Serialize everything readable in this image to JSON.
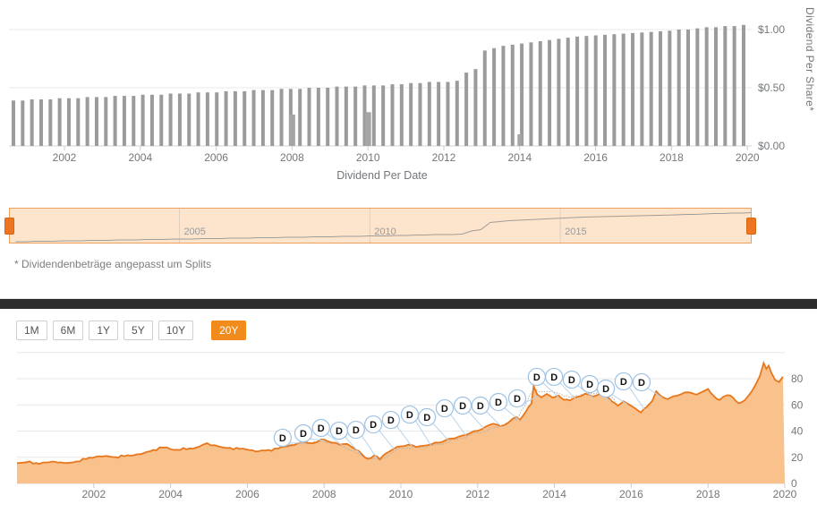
{
  "colors": {
    "accent_orange": "#f18b1b",
    "line_orange": "#e8771b",
    "area_fill": "#f9c18c",
    "bar_gray": "#9b9b9b",
    "navigator_fill": "#fce4cd",
    "navigator_border": "#efa05f",
    "handle_orange": "#ee7623",
    "badge_border": "#9fc2e4",
    "connector_blue": "#b9d4ec",
    "comparison_gray": "#b5aea6",
    "divider_dark": "#2d2d2d",
    "grid_gray": "#e8e8e8",
    "axis_line_gray": "#d6d6d6",
    "axis_text": "#74777a"
  },
  "footnote": "* Dividendenbeträge angepasst um Splits",
  "range_buttons": {
    "options": [
      "1M",
      "6M",
      "1Y",
      "5Y",
      "10Y",
      "20Y"
    ],
    "selected": "20Y"
  },
  "chart_data": [
    {
      "name": "dividend-per-share-bars",
      "type": "bar",
      "xlabel": "Dividend Per Date",
      "ylabel": "Dividend Per Share*",
      "frequency": "quarterly",
      "x_start_year": 2000.7,
      "x_step_years": 0.2443,
      "ylim": [
        0,
        1.15
      ],
      "values": [
        0.39,
        0.39,
        0.4,
        0.4,
        0.4,
        0.41,
        0.41,
        0.41,
        0.42,
        0.42,
        0.42,
        0.43,
        0.43,
        0.43,
        0.44,
        0.44,
        0.44,
        0.45,
        0.45,
        0.45,
        0.46,
        0.46,
        0.46,
        0.47,
        0.47,
        0.47,
        0.48,
        0.48,
        0.48,
        0.49,
        0.49,
        0.49,
        0.5,
        0.5,
        0.5,
        0.51,
        0.51,
        0.51,
        0.52,
        0.52,
        0.52,
        0.53,
        0.53,
        0.54,
        0.54,
        0.55,
        0.55,
        0.55,
        0.56,
        0.63,
        0.66,
        0.82,
        0.84,
        0.86,
        0.87,
        0.88,
        0.89,
        0.9,
        0.91,
        0.92,
        0.93,
        0.94,
        0.945,
        0.95,
        0.955,
        0.96,
        0.965,
        0.97,
        0.975,
        0.98,
        0.985,
        0.99,
        1.0,
        1.0,
        1.01,
        1.02,
        1.02,
        1.03,
        1.03,
        1.04
      ],
      "special_bars": [
        {
          "year": 2008.0,
          "value": 0.27,
          "w": 7
        },
        {
          "year": 2010.0,
          "value": 0.29,
          "w": 7
        },
        {
          "year": 2014.0,
          "value": 0.1,
          "w": 5
        }
      ],
      "x_ticks": [
        2002,
        2004,
        2006,
        2008,
        2010,
        2012,
        2014,
        2016,
        2018,
        2020
      ],
      "y_ticks": [
        {
          "value": 1.0,
          "label": "$1.00"
        },
        {
          "value": 0.5,
          "label": "$0.50"
        },
        {
          "value": 0.0,
          "label": "$0.00"
        }
      ]
    },
    {
      "name": "range-navigator",
      "type": "area",
      "series_ref": "dividend-per-share-bars",
      "x_ticks": [
        2005,
        2010,
        2015
      ],
      "selected_range": "full"
    },
    {
      "name": "price-chart",
      "type": "area",
      "ylim": [
        0,
        100
      ],
      "x_ticks": [
        2002,
        2004,
        2006,
        2008,
        2010,
        2012,
        2014,
        2016,
        2018,
        2020
      ],
      "y_ticks": [
        0,
        20,
        40,
        60,
        80
      ],
      "y_grid": [
        0,
        20,
        40,
        60,
        80,
        100
      ],
      "points": [
        [
          2000.0,
          15.5
        ],
        [
          2000.25,
          16.2
        ],
        [
          2000.5,
          15.6
        ],
        [
          2000.75,
          16.0
        ],
        [
          2001.0,
          16.4
        ],
        [
          2001.3,
          15.6
        ],
        [
          2001.55,
          16.8
        ],
        [
          2001.8,
          18.6
        ],
        [
          2002.05,
          20.4
        ],
        [
          2002.3,
          21.0
        ],
        [
          2002.55,
          20.2
        ],
        [
          2002.8,
          20.8
        ],
        [
          2003.05,
          21.6
        ],
        [
          2003.3,
          23.2
        ],
        [
          2003.55,
          25.6
        ],
        [
          2003.8,
          27.4
        ],
        [
          2004.0,
          26.2
        ],
        [
          2004.25,
          25.6
        ],
        [
          2004.5,
          26.8
        ],
        [
          2004.75,
          28.2
        ],
        [
          2004.95,
          30.8
        ],
        [
          2005.15,
          29.2
        ],
        [
          2005.35,
          27.6
        ],
        [
          2005.55,
          27.2
        ],
        [
          2005.8,
          26.4
        ],
        [
          2006.05,
          25.6
        ],
        [
          2006.3,
          24.6
        ],
        [
          2006.55,
          25.6
        ],
        [
          2006.8,
          26.6
        ],
        [
          2007.05,
          28.6
        ],
        [
          2007.3,
          30.4
        ],
        [
          2007.5,
          31.8
        ],
        [
          2007.75,
          31.0
        ],
        [
          2008.0,
          33.6
        ],
        [
          2008.2,
          31.2
        ],
        [
          2008.4,
          29.6
        ],
        [
          2008.6,
          30.2
        ],
        [
          2008.8,
          26.4
        ],
        [
          2009.0,
          21.8
        ],
        [
          2009.15,
          18.8
        ],
        [
          2009.3,
          21.4
        ],
        [
          2009.45,
          18.4
        ],
        [
          2009.6,
          22.8
        ],
        [
          2009.8,
          26.2
        ],
        [
          2010.0,
          28.4
        ],
        [
          2010.2,
          29.6
        ],
        [
          2010.4,
          27.8
        ],
        [
          2010.6,
          28.8
        ],
        [
          2010.8,
          30.0
        ],
        [
          2011.0,
          31.2
        ],
        [
          2011.2,
          33.6
        ],
        [
          2011.4,
          34.4
        ],
        [
          2011.6,
          36.6
        ],
        [
          2011.8,
          38.4
        ],
        [
          2012.0,
          40.2
        ],
        [
          2012.2,
          43.2
        ],
        [
          2012.4,
          45.6
        ],
        [
          2012.6,
          43.8
        ],
        [
          2012.8,
          46.4
        ],
        [
          2013.0,
          50.8
        ],
        [
          2013.1,
          48.6
        ],
        [
          2013.25,
          54.5
        ],
        [
          2013.4,
          61.0
        ],
        [
          2013.46,
          74.5
        ],
        [
          2013.55,
          68.0
        ],
        [
          2013.66,
          65.8
        ],
        [
          2013.8,
          68.4
        ],
        [
          2013.95,
          65.6
        ],
        [
          2014.1,
          67.2
        ],
        [
          2014.25,
          63.8
        ],
        [
          2014.4,
          63.4
        ],
        [
          2014.6,
          66.2
        ],
        [
          2014.8,
          68.6
        ],
        [
          2015.0,
          66.4
        ],
        [
          2015.2,
          68.8
        ],
        [
          2015.35,
          66.8
        ],
        [
          2015.5,
          62.6
        ],
        [
          2015.65,
          59.4
        ],
        [
          2015.8,
          62.8
        ],
        [
          2015.95,
          60.2
        ],
        [
          2016.1,
          57.4
        ],
        [
          2016.25,
          54.2
        ],
        [
          2016.4,
          58.4
        ],
        [
          2016.55,
          63.2
        ],
        [
          2016.65,
          70.4
        ],
        [
          2016.8,
          66.2
        ],
        [
          2016.95,
          64.4
        ],
        [
          2017.1,
          66.6
        ],
        [
          2017.3,
          68.2
        ],
        [
          2017.5,
          69.6
        ],
        [
          2017.7,
          67.8
        ],
        [
          2017.9,
          70.6
        ],
        [
          2018.0,
          72.2
        ],
        [
          2018.15,
          66.8
        ],
        [
          2018.3,
          63.8
        ],
        [
          2018.5,
          67.4
        ],
        [
          2018.65,
          65.6
        ],
        [
          2018.8,
          61.2
        ],
        [
          2018.95,
          63.4
        ],
        [
          2019.05,
          66.8
        ],
        [
          2019.15,
          70.8
        ],
        [
          2019.25,
          76.0
        ],
        [
          2019.35,
          82.0
        ],
        [
          2019.45,
          92.0
        ],
        [
          2019.52,
          87.5
        ],
        [
          2019.58,
          90.0
        ],
        [
          2019.65,
          84.5
        ],
        [
          2019.75,
          79.0
        ],
        [
          2019.85,
          77.5
        ],
        [
          2019.95,
          81.5
        ]
      ],
      "comparison_points": [
        [
          2007.0,
          28.0
        ],
        [
          2007.5,
          30.6
        ],
        [
          2008.0,
          32.2
        ],
        [
          2008.5,
          28.6
        ],
        [
          2009.0,
          20.6
        ],
        [
          2009.45,
          17.6
        ],
        [
          2010.0,
          27.2
        ],
        [
          2010.5,
          27.4
        ],
        [
          2011.0,
          29.8
        ],
        [
          2011.5,
          34.2
        ],
        [
          2012.0,
          38.6
        ],
        [
          2012.5,
          43.0
        ],
        [
          2013.0,
          48.8
        ],
        [
          2013.45,
          71.0
        ],
        [
          2013.8,
          70.2
        ],
        [
          2014.1,
          69.0
        ],
        [
          2014.4,
          65.6
        ],
        [
          2014.7,
          68.0
        ],
        [
          2015.0,
          68.4
        ],
        [
          2015.2,
          70.6
        ],
        [
          2015.45,
          67.0
        ],
        [
          2015.6,
          62.4
        ]
      ],
      "dividend_markers": {
        "label": "D",
        "positions": [
          [
            2006.92,
            34.9
          ],
          [
            2007.46,
            38.3
          ],
          [
            2007.92,
            42.4
          ],
          [
            2008.39,
            40.3
          ],
          [
            2008.83,
            41.0
          ],
          [
            2009.28,
            45.1
          ],
          [
            2009.74,
            48.5
          ],
          [
            2010.23,
            52.6
          ],
          [
            2010.68,
            50.6
          ],
          [
            2011.14,
            57.4
          ],
          [
            2011.61,
            59.5
          ],
          [
            2012.07,
            59.5
          ],
          [
            2012.54,
            62.2
          ],
          [
            2013.03,
            65.0
          ],
          [
            2013.54,
            81.4
          ],
          [
            2013.99,
            81.4
          ],
          [
            2014.45,
            79.3
          ],
          [
            2014.92,
            75.9
          ],
          [
            2015.34,
            72.5
          ],
          [
            2015.8,
            78.0
          ],
          [
            2016.27,
            77.3
          ]
        ]
      }
    }
  ]
}
